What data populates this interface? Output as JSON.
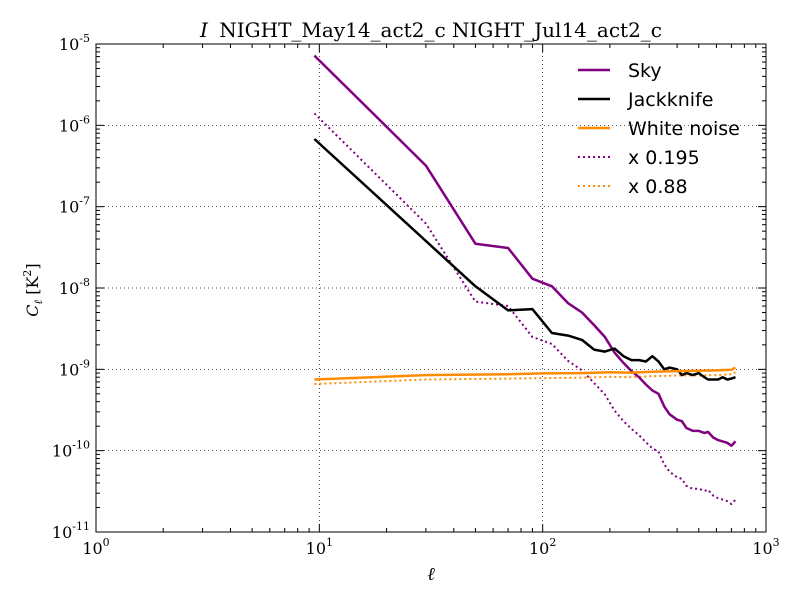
{
  "chart_data": {
    "type": "line",
    "title_italic": "I",
    "title": "NIGHT_May14_act2_c NIGHT_Jul14_act2_c",
    "xlabel": "ℓ",
    "ylabel_main": "C",
    "ylabel_sub": "ℓ",
    "ylabel_unit_open": " [K",
    "ylabel_unit_sup": "2",
    "ylabel_unit_close": "]",
    "xscale": "log",
    "yscale": "log",
    "xlim": [
      1,
      1000
    ],
    "ylim": [
      1e-11,
      1e-05
    ],
    "x_ticks": [
      {
        "value": 1,
        "base": "10",
        "exp": "0"
      },
      {
        "value": 10,
        "base": "10",
        "exp": "1"
      },
      {
        "value": 100,
        "base": "10",
        "exp": "2"
      },
      {
        "value": 1000,
        "base": "10",
        "exp": "3"
      }
    ],
    "y_ticks": [
      {
        "value": 1e-11,
        "base": "10",
        "exp": "-11"
      },
      {
        "value": 1e-10,
        "base": "10",
        "exp": "-10"
      },
      {
        "value": 1e-09,
        "base": "10",
        "exp": "-9"
      },
      {
        "value": 1e-08,
        "base": "10",
        "exp": "-8"
      },
      {
        "value": 1e-07,
        "base": "10",
        "exp": "-7"
      },
      {
        "value": 1e-06,
        "base": "10",
        "exp": "-6"
      },
      {
        "value": 1e-05,
        "base": "10",
        "exp": "-5"
      }
    ],
    "grid": true,
    "legend_position": "top-right",
    "series": [
      {
        "name": "Sky",
        "color": "#800080",
        "style": "solid",
        "points": [
          [
            9.5,
            7.2e-06
          ],
          [
            30,
            3.2e-07
          ],
          [
            50,
            3.5e-08
          ],
          [
            70,
            3.1e-08
          ],
          [
            90,
            1.3e-08
          ],
          [
            110,
            1.05e-08
          ],
          [
            130,
            6.5e-09
          ],
          [
            150,
            5e-09
          ],
          [
            170,
            3.5e-09
          ],
          [
            190,
            2.5e-09
          ],
          [
            210,
            1.6e-09
          ],
          [
            230,
            1.2e-09
          ],
          [
            250,
            9.5e-10
          ],
          [
            270,
            8e-10
          ],
          [
            290,
            6.5e-10
          ],
          [
            310,
            5.5e-10
          ],
          [
            330,
            5e-10
          ],
          [
            350,
            3.5e-10
          ],
          [
            370,
            2.8e-10
          ],
          [
            400,
            2.4e-10
          ],
          [
            420,
            2.3e-10
          ],
          [
            440,
            1.9e-10
          ],
          [
            470,
            1.75e-10
          ],
          [
            500,
            1.75e-10
          ],
          [
            530,
            1.65e-10
          ],
          [
            550,
            1.7e-10
          ],
          [
            580,
            1.45e-10
          ],
          [
            610,
            1.35e-10
          ],
          [
            640,
            1.3e-10
          ],
          [
            670,
            1.25e-10
          ],
          [
            700,
            1.15e-10
          ],
          [
            730,
            1.3e-10
          ]
        ]
      },
      {
        "name": "Jackknife",
        "color": "#000000",
        "style": "solid",
        "points": [
          [
            9.5,
            6.8e-07
          ],
          [
            50,
            1.05e-08
          ],
          [
            70,
            5.3e-09
          ],
          [
            90,
            5.5e-09
          ],
          [
            110,
            2.8e-09
          ],
          [
            130,
            2.6e-09
          ],
          [
            150,
            2.3e-09
          ],
          [
            170,
            1.75e-09
          ],
          [
            190,
            1.65e-09
          ],
          [
            210,
            1.8e-09
          ],
          [
            230,
            1.45e-09
          ],
          [
            250,
            1.3e-09
          ],
          [
            270,
            1.3e-09
          ],
          [
            290,
            1.25e-09
          ],
          [
            310,
            1.45e-09
          ],
          [
            330,
            1.25e-09
          ],
          [
            350,
            1e-09
          ],
          [
            370,
            1.05e-09
          ],
          [
            400,
            1e-09
          ],
          [
            420,
            8.5e-10
          ],
          [
            440,
            9e-10
          ],
          [
            470,
            8.5e-10
          ],
          [
            500,
            9e-10
          ],
          [
            530,
            8e-10
          ],
          [
            550,
            7.5e-10
          ],
          [
            580,
            7.5e-10
          ],
          [
            610,
            7.5e-10
          ],
          [
            640,
            8e-10
          ],
          [
            670,
            7.5e-10
          ],
          [
            700,
            7.7e-10
          ],
          [
            730,
            8e-10
          ]
        ]
      },
      {
        "name": "White noise",
        "color": "#ff8c00",
        "style": "solid",
        "points": [
          [
            9.5,
            7.5e-10
          ],
          [
            30,
            8.5e-10
          ],
          [
            70,
            8.7e-10
          ],
          [
            100,
            8.9e-10
          ],
          [
            150,
            9e-10
          ],
          [
            200,
            9.2e-10
          ],
          [
            250,
            9.1e-10
          ],
          [
            300,
            9.3e-10
          ],
          [
            400,
            9.5e-10
          ],
          [
            500,
            9.6e-10
          ],
          [
            600,
            9.7e-10
          ],
          [
            700,
            9.9e-10
          ],
          [
            730,
            1.05e-09
          ]
        ]
      },
      {
        "name": "x 0.195",
        "color": "#800080",
        "style": "dotted",
        "points": [
          [
            9.5,
            1.4e-06
          ],
          [
            30,
            6.2e-08
          ],
          [
            50,
            6.8e-09
          ],
          [
            70,
            6e-09
          ],
          [
            90,
            2.5e-09
          ],
          [
            110,
            2.05e-09
          ],
          [
            130,
            1.27e-09
          ],
          [
            150,
            9.7e-10
          ],
          [
            170,
            6.8e-10
          ],
          [
            190,
            4.9e-10
          ],
          [
            210,
            3.1e-10
          ],
          [
            230,
            2.3e-10
          ],
          [
            250,
            1.85e-10
          ],
          [
            270,
            1.55e-10
          ],
          [
            290,
            1.27e-10
          ],
          [
            310,
            1.07e-10
          ],
          [
            330,
            9.7e-11
          ],
          [
            350,
            6.8e-11
          ],
          [
            370,
            5.5e-11
          ],
          [
            400,
            4.7e-11
          ],
          [
            420,
            4.5e-11
          ],
          [
            440,
            3.7e-11
          ],
          [
            470,
            3.4e-11
          ],
          [
            500,
            3.4e-11
          ],
          [
            530,
            3.2e-11
          ],
          [
            550,
            3.3e-11
          ],
          [
            580,
            2.8e-11
          ],
          [
            610,
            2.6e-11
          ],
          [
            640,
            2.5e-11
          ],
          [
            670,
            2.4e-11
          ],
          [
            700,
            2.2e-11
          ],
          [
            730,
            2.5e-11
          ]
        ]
      },
      {
        "name": "x 0.88",
        "color": "#ff8c00",
        "style": "dotted",
        "points": [
          [
            9.5,
            6.6e-10
          ],
          [
            30,
            7.5e-10
          ],
          [
            70,
            7.7e-10
          ],
          [
            100,
            7.8e-10
          ],
          [
            150,
            7.9e-10
          ],
          [
            200,
            8.1e-10
          ],
          [
            250,
            8e-10
          ],
          [
            300,
            8.2e-10
          ],
          [
            400,
            8.4e-10
          ],
          [
            500,
            8.4e-10
          ],
          [
            600,
            8.5e-10
          ],
          [
            700,
            8.7e-10
          ],
          [
            730,
            9.2e-10
          ]
        ]
      }
    ]
  }
}
